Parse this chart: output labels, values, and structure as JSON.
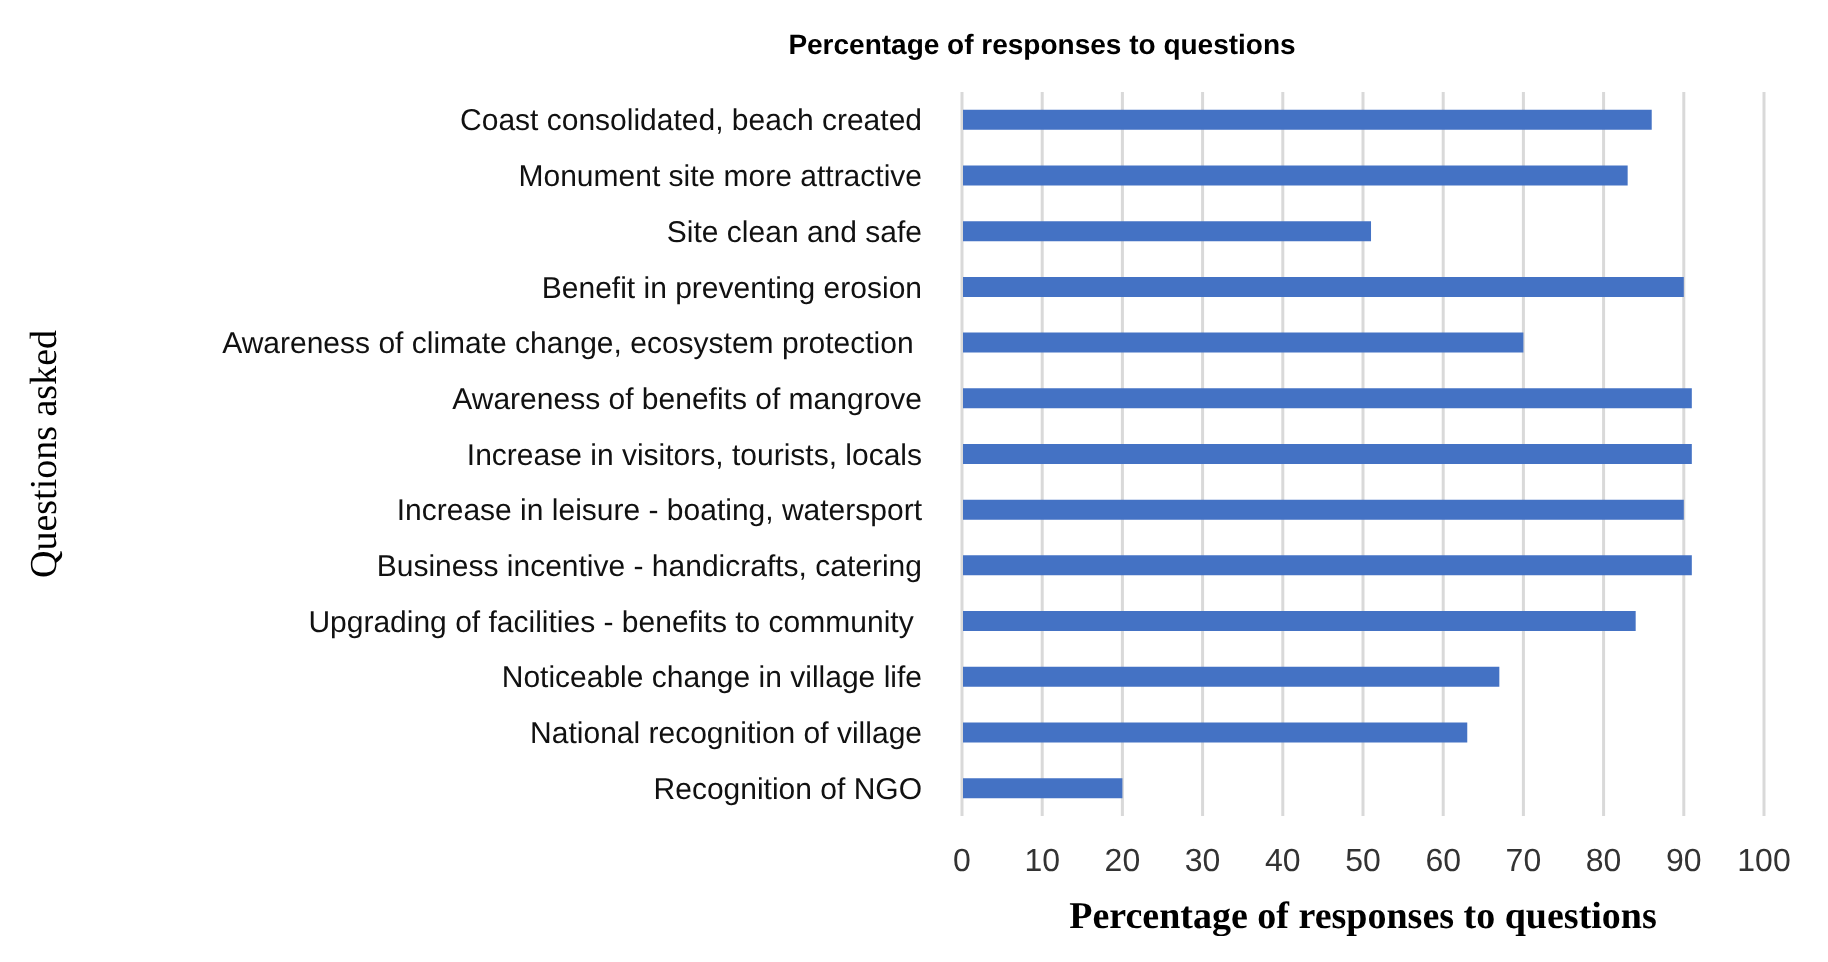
{
  "chart_data": {
    "type": "bar",
    "orientation": "horizontal",
    "title": "Percentage of responses to questions",
    "xlabel": "Percentage of responses to questions",
    "ylabel": "Questions asked",
    "categories": [
      "Coast  consolidated, beach created",
      "Monument site more attractive",
      "Site clean and safe",
      "Benefit in preventing erosion",
      "Awareness of climate change, ecosystem protection ",
      "Awareness of benefits of mangrove",
      "Increase in visitors, tourists, locals",
      "Increase in leisure  - boating,  watersport",
      "Business incentive - handicrafts, catering",
      "Upgrading of facilities - benefits to community ",
      "Noticeable change in village life",
      "National recognition of village",
      "Recognition of NGO"
    ],
    "values": [
      86,
      83,
      51,
      90,
      70,
      91,
      91,
      90,
      91,
      84,
      67,
      63,
      20
    ],
    "color": "#4472c4",
    "xlim": [
      0,
      100
    ],
    "xticks": [
      0,
      10,
      20,
      30,
      40,
      50,
      60,
      70,
      80,
      90,
      100
    ],
    "grid": "x"
  }
}
